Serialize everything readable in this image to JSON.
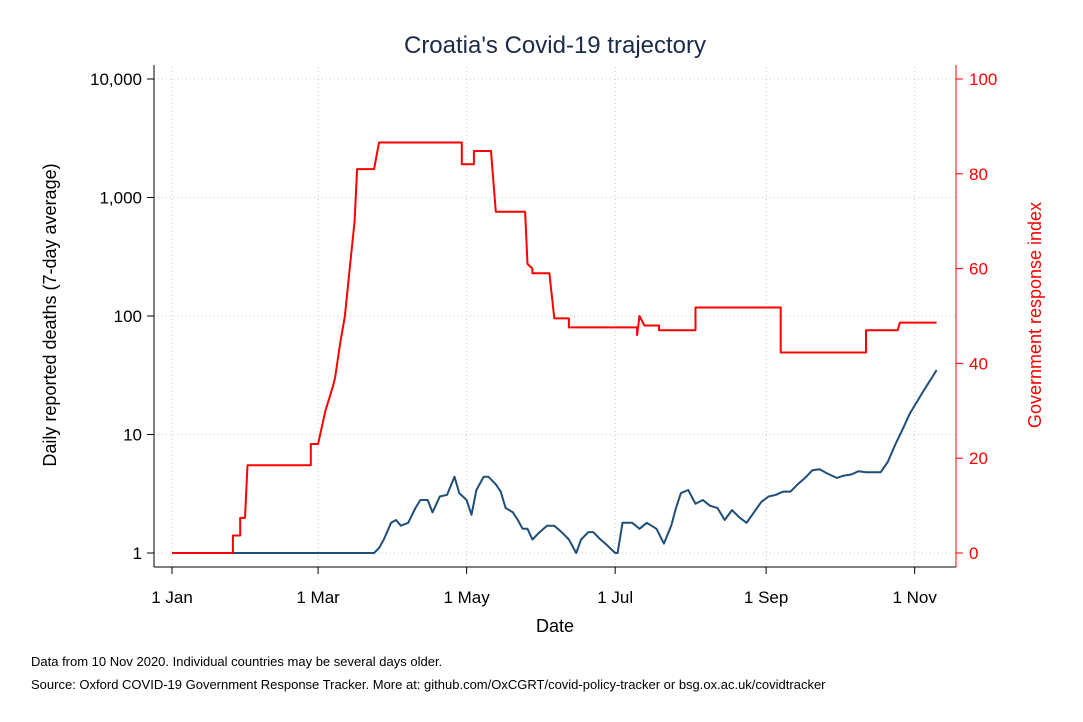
{
  "chart_data": {
    "type": "line",
    "title": "Croatia's Covid-19 trajectory",
    "xlabel": "Date",
    "ylabel_left": "Daily reported deaths (7-day average)",
    "ylabel_right": "Government response index",
    "x_range": [
      "2020-01-01",
      "2020-11-11"
    ],
    "x_ticks": [
      {
        "date": "2020-01-01",
        "label": "1 Jan"
      },
      {
        "date": "2020-03-01",
        "label": "1 Mar"
      },
      {
        "date": "2020-05-01",
        "label": "1 May"
      },
      {
        "date": "2020-07-01",
        "label": "1 Jul"
      },
      {
        "date": "2020-09-01",
        "label": "1 Sep"
      },
      {
        "date": "2020-11-01",
        "label": "1 Nov"
      }
    ],
    "y_left": {
      "scale": "log",
      "range": [
        1,
        10000
      ],
      "ticks": [
        {
          "value": 1,
          "label": "1"
        },
        {
          "value": 10,
          "label": "10"
        },
        {
          "value": 100,
          "label": "100"
        },
        {
          "value": 1000,
          "label": "1,000"
        },
        {
          "value": 10000,
          "label": "10,000"
        }
      ]
    },
    "y_right": {
      "scale": "linear",
      "range": [
        0,
        100
      ],
      "ticks": [
        {
          "value": 0,
          "label": "0"
        },
        {
          "value": 20,
          "label": "20"
        },
        {
          "value": 40,
          "label": "40"
        },
        {
          "value": 60,
          "label": "60"
        },
        {
          "value": 80,
          "label": "80"
        },
        {
          "value": 100,
          "label": "100"
        }
      ]
    },
    "grid": true,
    "series": [
      {
        "axis": "left",
        "color": "#1f4e79",
        "points": [
          [
            "2020-01-01",
            1
          ],
          [
            "2020-03-24",
            1
          ],
          [
            "2020-03-26",
            1.1
          ],
          [
            "2020-03-28",
            1.3
          ],
          [
            "2020-03-31",
            1.8
          ],
          [
            "2020-04-02",
            1.9
          ],
          [
            "2020-04-04",
            1.7
          ],
          [
            "2020-04-07",
            1.8
          ],
          [
            "2020-04-10",
            2.4
          ],
          [
            "2020-04-12",
            2.8
          ],
          [
            "2020-04-15",
            2.8
          ],
          [
            "2020-04-17",
            2.2
          ],
          [
            "2020-04-20",
            3.0
          ],
          [
            "2020-04-23",
            3.1
          ],
          [
            "2020-04-26",
            4.4
          ],
          [
            "2020-04-28",
            3.2
          ],
          [
            "2020-05-01",
            2.8
          ],
          [
            "2020-05-03",
            2.1
          ],
          [
            "2020-05-05",
            3.4
          ],
          [
            "2020-05-08",
            4.4
          ],
          [
            "2020-05-10",
            4.4
          ],
          [
            "2020-05-13",
            3.8
          ],
          [
            "2020-05-15",
            3.3
          ],
          [
            "2020-05-17",
            2.4
          ],
          [
            "2020-05-20",
            2.2
          ],
          [
            "2020-05-22",
            1.9
          ],
          [
            "2020-05-24",
            1.6
          ],
          [
            "2020-05-26",
            1.6
          ],
          [
            "2020-05-28",
            1.3
          ],
          [
            "2020-05-31",
            1.5
          ],
          [
            "2020-06-03",
            1.7
          ],
          [
            "2020-06-06",
            1.7
          ],
          [
            "2020-06-09",
            1.5
          ],
          [
            "2020-06-12",
            1.3
          ],
          [
            "2020-06-15",
            1.0
          ],
          [
            "2020-06-17",
            1.3
          ],
          [
            "2020-06-20",
            1.5
          ],
          [
            "2020-06-22",
            1.5
          ],
          [
            "2020-06-25",
            1.3
          ],
          [
            "2020-06-27",
            1.2
          ],
          [
            "2020-07-01",
            1
          ],
          [
            "2020-07-02",
            1
          ],
          [
            "2020-07-04",
            1.8
          ],
          [
            "2020-07-08",
            1.8
          ],
          [
            "2020-07-11",
            1.6
          ],
          [
            "2020-07-14",
            1.8
          ],
          [
            "2020-07-18",
            1.6
          ],
          [
            "2020-07-21",
            1.2
          ],
          [
            "2020-07-24",
            1.7
          ],
          [
            "2020-07-26",
            2.4
          ],
          [
            "2020-07-28",
            3.2
          ],
          [
            "2020-07-31",
            3.4
          ],
          [
            "2020-08-03",
            2.6
          ],
          [
            "2020-08-06",
            2.8
          ],
          [
            "2020-08-09",
            2.5
          ],
          [
            "2020-08-12",
            2.4
          ],
          [
            "2020-08-15",
            1.9
          ],
          [
            "2020-08-18",
            2.3
          ],
          [
            "2020-08-21",
            2.0
          ],
          [
            "2020-08-24",
            1.8
          ],
          [
            "2020-08-27",
            2.2
          ],
          [
            "2020-08-30",
            2.7
          ],
          [
            "2020-09-02",
            3.0
          ],
          [
            "2020-09-05",
            3.1
          ],
          [
            "2020-09-08",
            3.3
          ],
          [
            "2020-09-11",
            3.3
          ],
          [
            "2020-09-14",
            3.8
          ],
          [
            "2020-09-17",
            4.3
          ],
          [
            "2020-09-20",
            5.0
          ],
          [
            "2020-09-23",
            5.1
          ],
          [
            "2020-09-26",
            4.7
          ],
          [
            "2020-09-30",
            4.3
          ],
          [
            "2020-10-03",
            4.5
          ],
          [
            "2020-10-06",
            4.6
          ],
          [
            "2020-10-09",
            4.9
          ],
          [
            "2020-10-12",
            4.8
          ],
          [
            "2020-10-15",
            4.8
          ],
          [
            "2020-10-18",
            4.8
          ],
          [
            "2020-10-21",
            5.9
          ],
          [
            "2020-10-24",
            8.2
          ],
          [
            "2020-10-27",
            11.0
          ],
          [
            "2020-10-30",
            15.0
          ],
          [
            "2020-11-02",
            19.0
          ],
          [
            "2020-11-05",
            24.0
          ],
          [
            "2020-11-08",
            30.0
          ],
          [
            "2020-11-10",
            35.0
          ]
        ]
      },
      {
        "axis": "right",
        "color": "#ff0000",
        "points": [
          [
            "2020-01-01",
            0
          ],
          [
            "2020-01-26",
            0
          ],
          [
            "2020-01-26",
            3.7
          ],
          [
            "2020-01-29",
            3.7
          ],
          [
            "2020-01-29",
            7.4
          ],
          [
            "2020-01-31",
            7.4
          ],
          [
            "2020-02-01",
            18.5
          ],
          [
            "2020-02-27",
            18.5
          ],
          [
            "2020-02-27",
            23
          ],
          [
            "2020-03-01",
            23
          ],
          [
            "2020-03-04",
            30
          ],
          [
            "2020-03-07",
            35
          ],
          [
            "2020-03-08",
            37
          ],
          [
            "2020-03-10",
            44
          ],
          [
            "2020-03-12",
            50
          ],
          [
            "2020-03-13",
            55
          ],
          [
            "2020-03-14",
            60
          ],
          [
            "2020-03-16",
            70
          ],
          [
            "2020-03-17",
            81
          ],
          [
            "2020-03-24",
            81
          ],
          [
            "2020-03-26",
            86.6
          ],
          [
            "2020-04-29",
            86.6
          ],
          [
            "2020-04-29",
            82
          ],
          [
            "2020-05-04",
            82
          ],
          [
            "2020-05-04",
            84.8
          ],
          [
            "2020-05-11",
            84.8
          ],
          [
            "2020-05-13",
            72
          ],
          [
            "2020-05-25",
            72
          ],
          [
            "2020-05-26",
            61
          ],
          [
            "2020-05-28",
            60
          ],
          [
            "2020-05-28",
            59
          ],
          [
            "2020-06-04",
            59
          ],
          [
            "2020-06-06",
            49.5
          ],
          [
            "2020-06-12",
            49.5
          ],
          [
            "2020-06-12",
            47.6
          ],
          [
            "2020-07-10",
            47.6
          ],
          [
            "2020-07-10",
            46
          ],
          [
            "2020-07-11",
            50
          ],
          [
            "2020-07-13",
            48
          ],
          [
            "2020-07-19",
            48
          ],
          [
            "2020-07-19",
            47
          ],
          [
            "2020-08-03",
            47
          ],
          [
            "2020-08-03",
            51.8
          ],
          [
            "2020-09-07",
            51.8
          ],
          [
            "2020-09-07",
            42.3
          ],
          [
            "2020-10-12",
            42.3
          ],
          [
            "2020-10-12",
            47
          ],
          [
            "2020-10-25",
            47
          ],
          [
            "2020-10-26",
            48.6
          ],
          [
            "2020-11-10",
            48.6
          ]
        ]
      }
    ]
  },
  "footer": {
    "note": "Data from 10 Nov 2020. Individual countries may be several days older.",
    "source": "Source: Oxford COVID-19 Government Response Tracker. More at: github.com/OxCGRT/covid-policy-tracker or bsg.ox.ac.uk/covidtracker"
  }
}
